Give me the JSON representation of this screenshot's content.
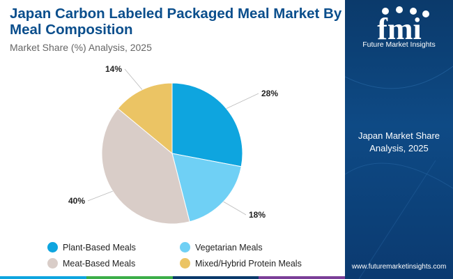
{
  "title": "Japan Carbon Labeled Packaged Meal Market By Meal Composition",
  "subtitle": "Market Share (%) Analysis, 2025",
  "chart_data": {
    "type": "pie",
    "title": "Japan Carbon Labeled Packaged Meal Market By Meal Composition",
    "subtitle": "Market Share (%) Analysis, 2025",
    "categories": [
      "Plant-Based Meals",
      "Vegetarian Meals",
      "Meat-Based Meals",
      "Mixed/Hybrid Protein Meals"
    ],
    "values": [
      28,
      18,
      40,
      14
    ],
    "labels": [
      "28%",
      "18%",
      "40%",
      "14%"
    ],
    "colors": [
      "#0ea5df",
      "#6fd0f5",
      "#d9cdc8",
      "#ebc464"
    ],
    "legend_position": "bottom"
  },
  "sidebar": {
    "logo_text": "fmi",
    "brand": "Future Market Insights",
    "caption": "Japan Market Share Analysis, 2025",
    "website": "www.futuremarketinsights.com"
  },
  "colors": {
    "title": "#0a4e8c",
    "sidebar": "#0e4a85",
    "bar": [
      "#0ea5df",
      "#3dae49",
      "#0b3a6b",
      "#7b3f98"
    ]
  }
}
